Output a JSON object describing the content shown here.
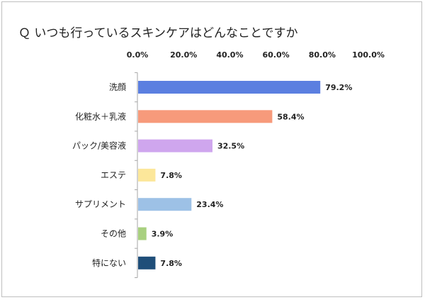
{
  "chart_data": {
    "type": "bar",
    "orientation": "horizontal",
    "title": "Ｑ いつも行っているスキンケアはどんなことですか",
    "categories": [
      "洗顔",
      "化粧水＋乳液",
      "パック/美容液",
      "エステ",
      "サプリメント",
      "その他",
      "特にない"
    ],
    "values": [
      79.2,
      58.4,
      32.5,
      7.8,
      23.4,
      3.9,
      7.8
    ],
    "value_labels": [
      "79.2%",
      "58.4%",
      "32.5%",
      "7.8%",
      "23.4%",
      "3.9%",
      "7.8%"
    ],
    "colors": [
      "#5b7fe0",
      "#f79a7b",
      "#cfa6ee",
      "#fce79a",
      "#9dc1e6",
      "#a8d07f",
      "#1f4e79"
    ],
    "xlim": [
      0,
      100
    ],
    "x_ticks": [
      "0.0%",
      "20.0%",
      "40.0%",
      "60.0%",
      "80.0%",
      "100.0%"
    ],
    "x_axis_position": "top",
    "grid": false,
    "legend": "none"
  }
}
